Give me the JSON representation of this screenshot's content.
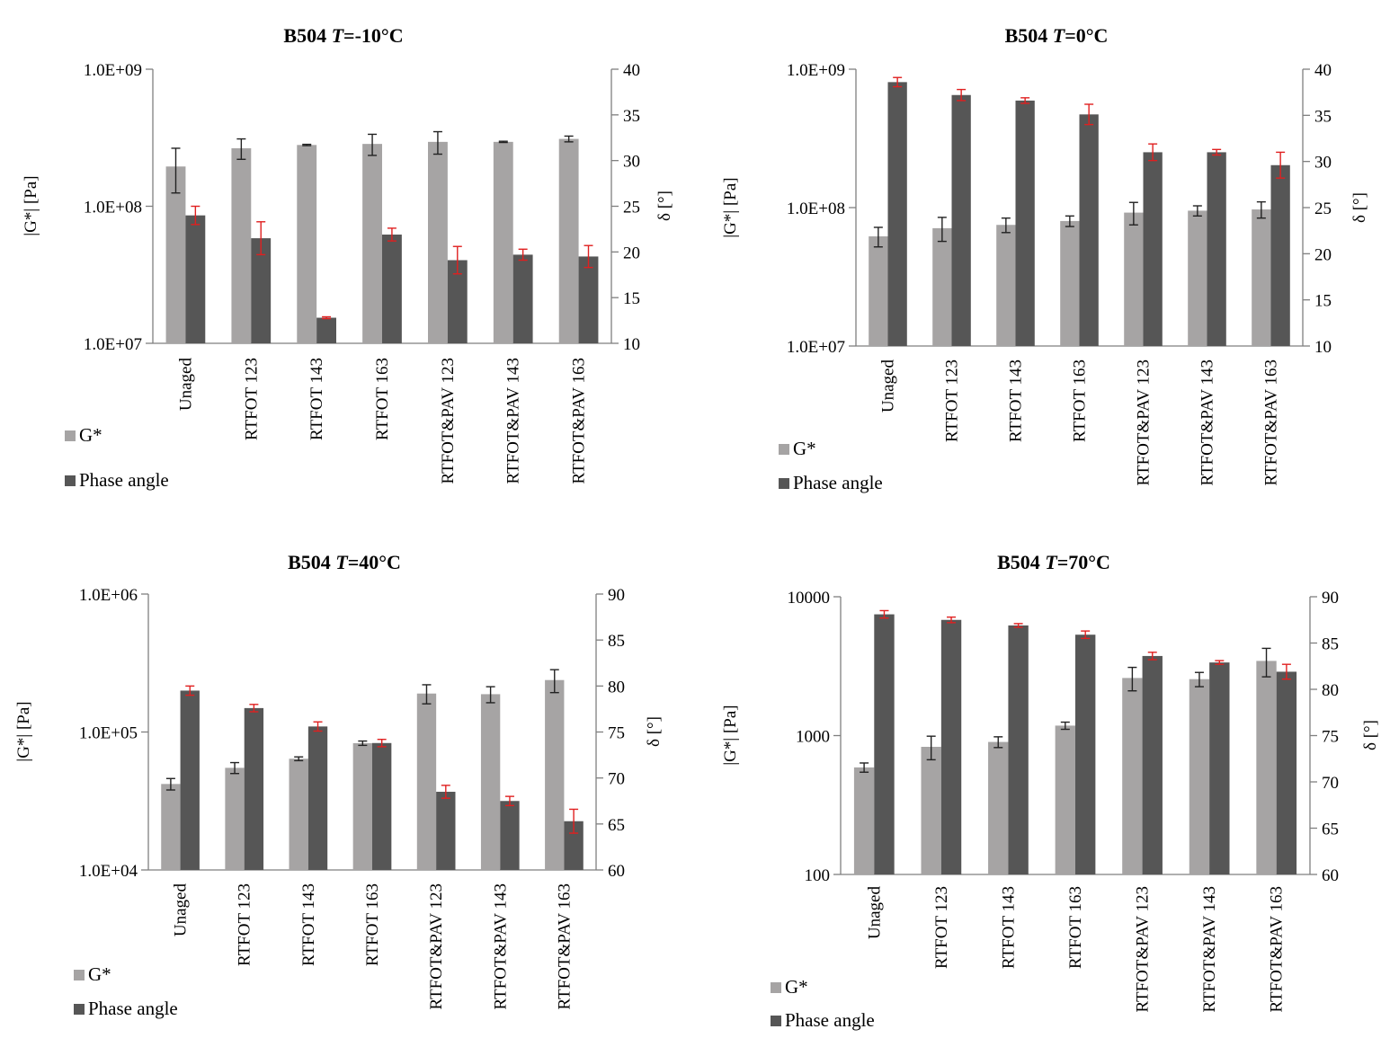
{
  "legend_labels": [
    "G*",
    "Phase angle"
  ],
  "colors": {
    "gstar": "#a6a4a4",
    "phase": "#565656",
    "gstar_err": "#222222",
    "phase_err": "#e02020",
    "axis": "#7f7f7f"
  },
  "chart_data": [
    {
      "type": "bar",
      "title": "B504 T=-10°C",
      "title_prefix": "B504 ",
      "title_var": "T",
      "title_suffix": "=-10°C",
      "ylabel_left": "|G*| [Pa]",
      "ylabel_right": "δ [°]",
      "left_scale": "log",
      "left_lim": [
        10000000,
        1000000000
      ],
      "left_ticks": [
        "1.0E+07",
        "1.0E+08",
        "1.0E+09"
      ],
      "right_lim": [
        10,
        40
      ],
      "right_ticks": [
        "10",
        "15",
        "20",
        "25",
        "30",
        "35",
        "40"
      ],
      "categories": [
        "Unaged",
        "RTFOT 123",
        "RTFOT 143",
        "RTFOT 163",
        "RTFOT&PAV 123",
        "RTFOT&PAV 143",
        "RTFOT&PAV 163"
      ],
      "series": [
        {
          "name": "G*",
          "axis": "left",
          "values": [
            195000000,
            265000000,
            280000000,
            285000000,
            295000000,
            295000000,
            310000000
          ],
          "errors": [
            70000000,
            45000000,
            3000000,
            50000000,
            55000000,
            3000000,
            15000000
          ]
        },
        {
          "name": "Phase angle",
          "axis": "right",
          "values": [
            24.0,
            21.5,
            12.8,
            21.9,
            19.1,
            19.7,
            19.5
          ],
          "errors": [
            1.0,
            1.8,
            0.1,
            0.7,
            1.5,
            0.6,
            1.2
          ]
        }
      ],
      "legend": "bottom-left"
    },
    {
      "type": "bar",
      "title": "B504 T=0°C",
      "title_prefix": "B504 ",
      "title_var": "T",
      "title_suffix": "=0°C",
      "ylabel_left": "|G*| [Pa]",
      "ylabel_right": "δ [°]",
      "left_scale": "log",
      "left_lim": [
        10000000,
        1000000000
      ],
      "left_ticks": [
        "1.0E+07",
        "1.0E+08",
        "1.0E+09"
      ],
      "right_lim": [
        10,
        40
      ],
      "right_ticks": [
        "10",
        "15",
        "20",
        "25",
        "30",
        "35",
        "40"
      ],
      "categories": [
        "Unaged",
        "RTFOT 123",
        "RTFOT 143",
        "RTFOT 163",
        "RTFOT&PAV 123",
        "RTFOT&PAV 143",
        "RTFOT&PAV 163"
      ],
      "series": [
        {
          "name": "G*",
          "axis": "left",
          "values": [
            62000000,
            71000000,
            75000000,
            80000000,
            92000000,
            95000000,
            97000000
          ],
          "errors": [
            10000000,
            14000000,
            9000000,
            7000000,
            17000000,
            8000000,
            13000000
          ]
        },
        {
          "name": "Phase angle",
          "axis": "right",
          "values": [
            38.6,
            37.2,
            36.6,
            35.1,
            31.0,
            31.0,
            29.6
          ],
          "errors": [
            0.5,
            0.6,
            0.3,
            1.1,
            0.9,
            0.3,
            1.4
          ]
        }
      ],
      "legend": "bottom-left"
    },
    {
      "type": "bar",
      "title": "B504 T=40°C",
      "title_prefix": "B504 ",
      "title_var": "T",
      "title_suffix": "=40°C",
      "ylabel_left": "|G*| [Pa]",
      "ylabel_right": "δ [°]",
      "left_scale": "log",
      "left_lim": [
        10000,
        1000000
      ],
      "left_ticks": [
        "1.0E+04",
        "1.0E+05",
        "1.0E+06"
      ],
      "right_lim": [
        60,
        90
      ],
      "right_ticks": [
        "60",
        "65",
        "70",
        "75",
        "80",
        "85",
        "90"
      ],
      "categories": [
        "Unaged",
        "RTFOT 123",
        "RTFOT 143",
        "RTFOT 163",
        "RTFOT&PAV 123",
        "RTFOT&PAV 143",
        "RTFOT&PAV 163"
      ],
      "series": [
        {
          "name": "G*",
          "axis": "left",
          "values": [
            42000,
            55000,
            64000,
            83000,
            190000,
            188000,
            238000
          ],
          "errors": [
            4000,
            5000,
            2000,
            3000,
            30000,
            25000,
            45000
          ]
        },
        {
          "name": "Phase angle",
          "axis": "right",
          "values": [
            79.5,
            77.6,
            75.6,
            73.8,
            68.5,
            67.5,
            65.3
          ],
          "errors": [
            0.5,
            0.4,
            0.5,
            0.4,
            0.7,
            0.5,
            1.3
          ]
        }
      ],
      "legend": "bottom-left"
    },
    {
      "type": "bar",
      "title": "B504 T=70°C",
      "title_prefix": "B504 ",
      "title_var": "T",
      "title_suffix": "=70°C",
      "ylabel_left": "|G*| [Pa]",
      "ylabel_right": "δ [°]",
      "left_scale": "log",
      "left_lim": [
        100,
        10000
      ],
      "left_ticks": [
        "100",
        "1000",
        "10000"
      ],
      "right_lim": [
        60,
        90
      ],
      "right_ticks": [
        "60",
        "65",
        "70",
        "75",
        "80",
        "85",
        "90"
      ],
      "categories": [
        "Unaged",
        "RTFOT 123",
        "RTFOT 143",
        "RTFOT 163",
        "RTFOT&PAV 123",
        "RTFOT&PAV 143",
        "RTFOT&PAV 163"
      ],
      "series": [
        {
          "name": "G*",
          "axis": "left",
          "values": [
            590,
            830,
            900,
            1180,
            2600,
            2550,
            3450
          ],
          "errors": [
            45,
            160,
            80,
            70,
            500,
            300,
            800
          ]
        },
        {
          "name": "Phase angle",
          "axis": "right",
          "values": [
            88.1,
            87.5,
            86.9,
            85.9,
            83.6,
            82.9,
            81.9
          ],
          "errors": [
            0.4,
            0.3,
            0.2,
            0.4,
            0.4,
            0.2,
            0.8
          ]
        }
      ],
      "legend": "bottom-left"
    }
  ]
}
